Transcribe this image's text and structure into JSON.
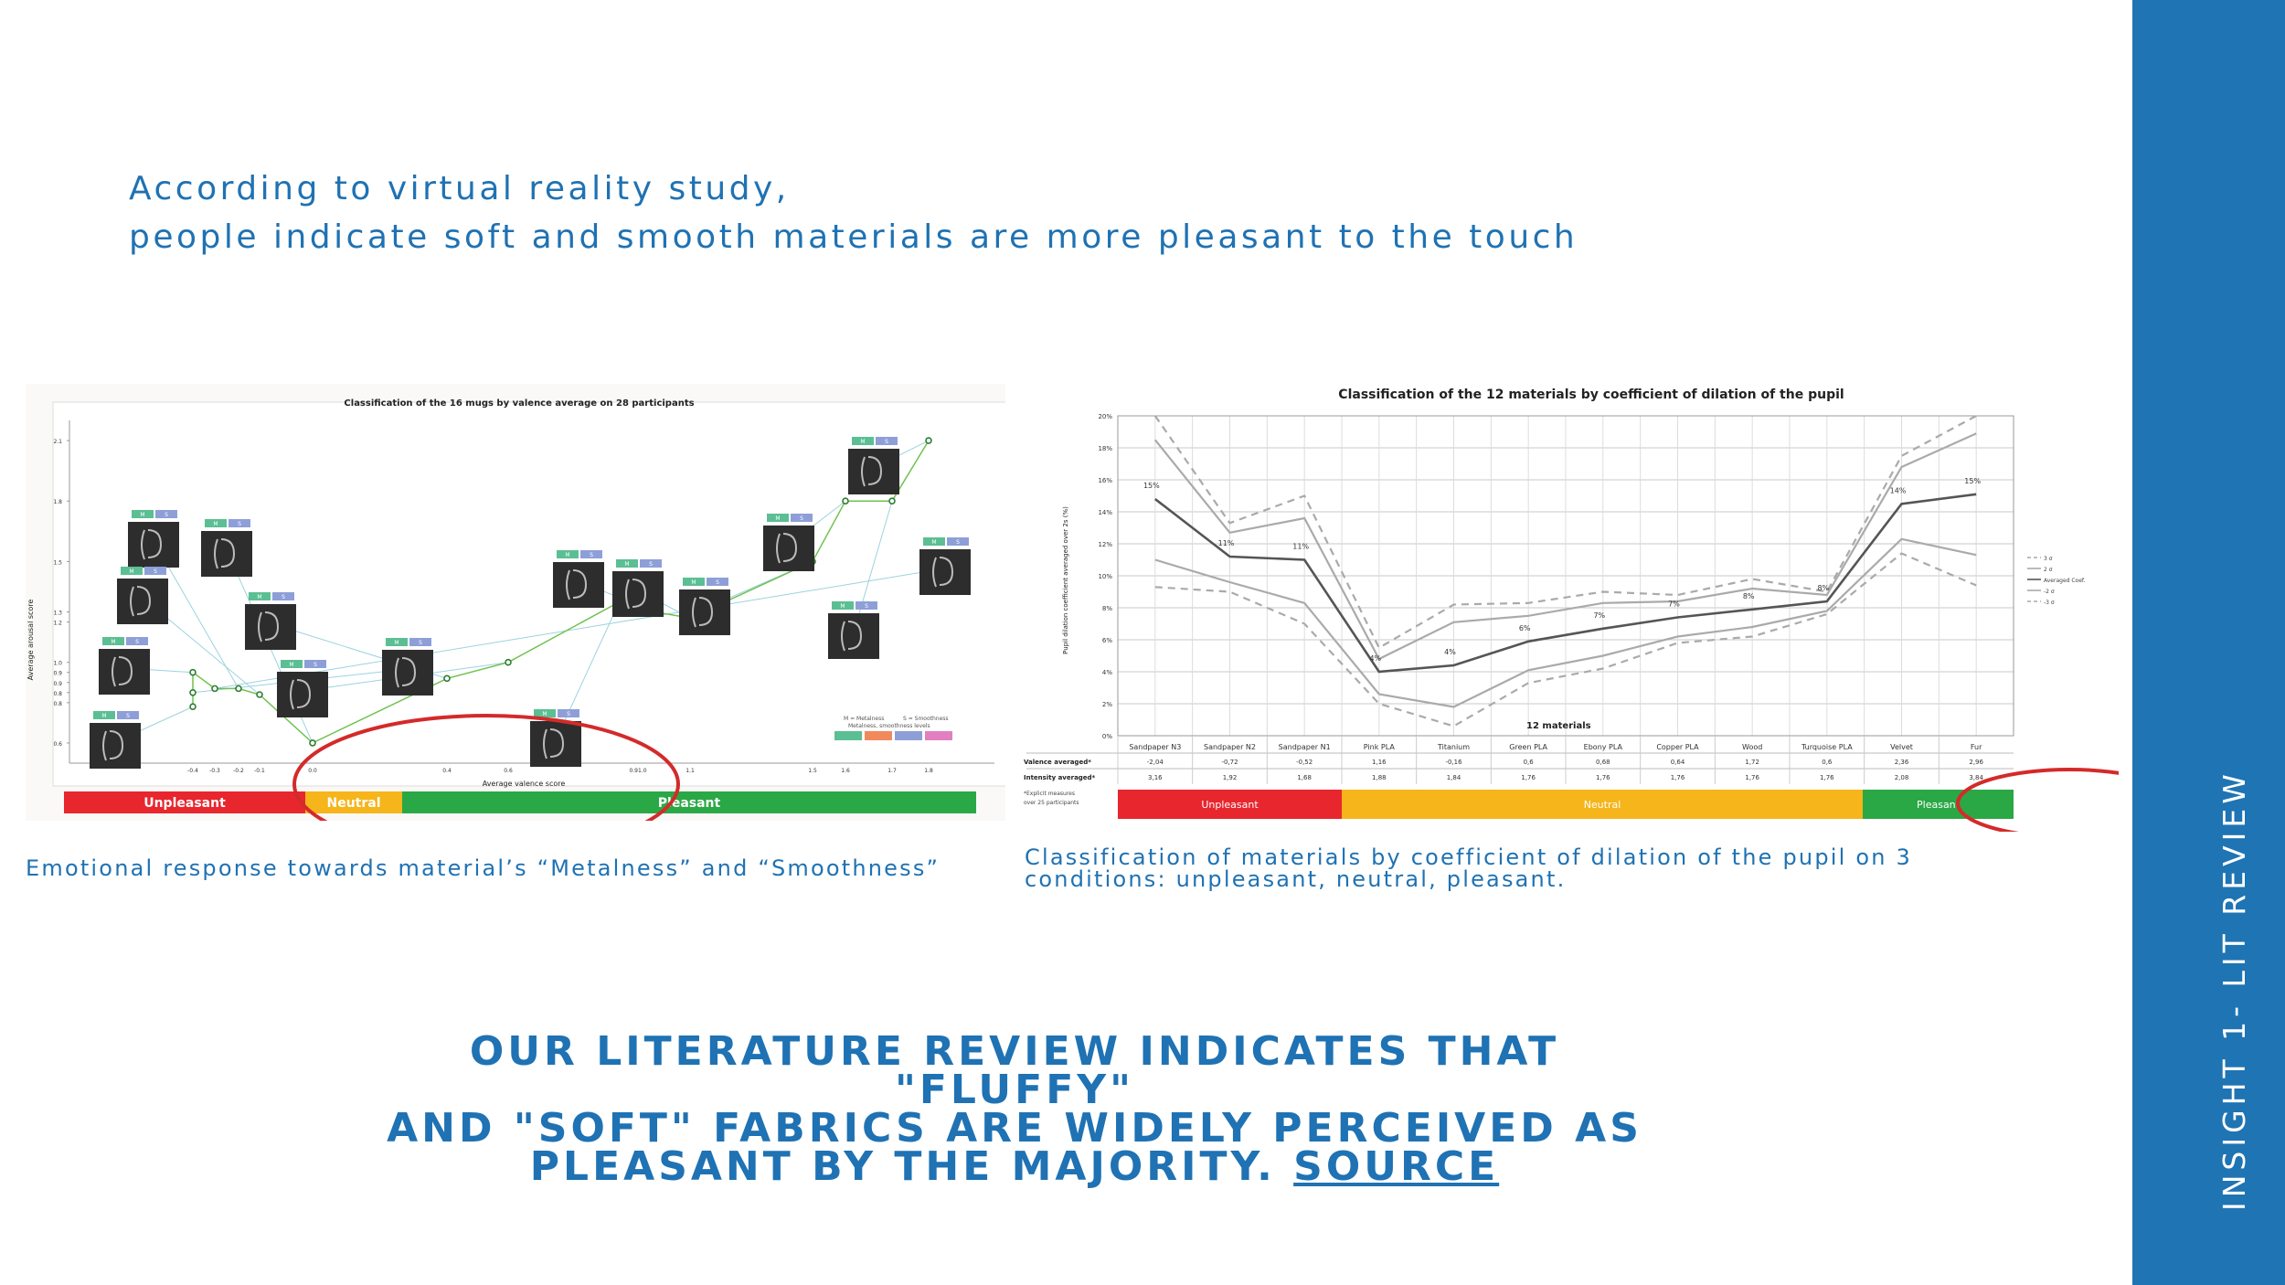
{
  "intro": {
    "line1": "According to virtual reality study,",
    "line2": "people indicate soft and smooth materials are more pleasant to the touch"
  },
  "sidebar": {
    "label": "INSIGHT 1- LIT REVIEW"
  },
  "left_figure": {
    "caption": "Emotional response towards material’s “Metalness” and “Smoothness”",
    "chart_data": {
      "type": "line",
      "title": "Classification of the 16 mugs by valence average on 28 participants",
      "xlabel": "Average valence score",
      "ylabel": "Average arousal score",
      "x_ticks": [
        "-0.4",
        "-0.3",
        "-0.2",
        "-0.1",
        "0.0",
        "0.4",
        "0.6",
        "0.91.0",
        "1.1",
        "1.5",
        "1.6",
        "1.7",
        "1.8"
      ],
      "y_ticks": [
        "0.6",
        "0.8",
        "0.8",
        "0.9",
        "0.9",
        "1.0",
        "1.2",
        "1.3",
        "1.5",
        "1.8",
        "2.1"
      ],
      "x": [
        -0.4,
        -0.4,
        -0.4,
        -0.3,
        -0.2,
        -0.1,
        0.0,
        0.4,
        0.6,
        0.9,
        1.0,
        1.1,
        1.5,
        1.6,
        1.7,
        1.8
      ],
      "y": [
        0.78,
        0.85,
        0.95,
        0.87,
        0.87,
        0.84,
        0.6,
        0.92,
        1.0,
        1.3,
        1.25,
        1.22,
        1.5,
        1.8,
        1.8,
        2.1
      ],
      "legend": [
        "M = Metalness",
        "S = Smoothness",
        "Metalness, smoothness levels"
      ],
      "zones": [
        "Unpleasant",
        "Neutral",
        "Pleasant"
      ],
      "zone_colors": [
        "#e8262e",
        "#f5b51b",
        "#2aa845"
      ],
      "tag_labels": [
        "M",
        "S"
      ]
    }
  },
  "right_figure": {
    "caption": "Classification of materials by coefficient of dilation of the pupil on 3 conditions: unpleasant, neutral, pleasant.",
    "chart_data": {
      "type": "line",
      "title": "Classification of the 12 materials by coefficient of dilation of the pupil",
      "xlabel": "12 materials",
      "ylabel": "Pupil dilation coefficient averaged over 2s (%)",
      "y_ticks": [
        "0%",
        "2%",
        "4%",
        "6%",
        "8%",
        "10%",
        "12%",
        "14%",
        "16%",
        "18%",
        "20%"
      ],
      "ylim": [
        0,
        20
      ],
      "categories": [
        "Sandpaper N3",
        "Sandpaper N2",
        "Sandpaper N1",
        "Pink PLA",
        "Titanium",
        "Green PLA",
        "Ebony PLA",
        "Copper PLA",
        "Wood",
        "Turquoise PLA",
        "Velvet",
        "Fur"
      ],
      "series": [
        {
          "name": "3 σ",
          "values": [
            20,
            13.3,
            15,
            5.5,
            8.2,
            8.3,
            9,
            8.8,
            9.8,
            9,
            17.5,
            20
          ]
        },
        {
          "name": "2 σ",
          "values": [
            18.5,
            12.7,
            13.6,
            4.8,
            7.1,
            7.5,
            8.3,
            8.4,
            9.2,
            8.8,
            16.8,
            18.9
          ]
        },
        {
          "name": "Averaged Coef.",
          "values": [
            14.8,
            11.2,
            11,
            4,
            4.4,
            5.9,
            6.7,
            7.4,
            7.9,
            8.4,
            14.5,
            15.1
          ]
        },
        {
          "name": "-2 σ",
          "values": [
            11,
            9.6,
            8.3,
            2.6,
            1.8,
            4.1,
            5,
            6.2,
            6.8,
            7.8,
            12.3,
            11.3
          ]
        },
        {
          "name": "-3 σ",
          "values": [
            9.3,
            9,
            7,
            2,
            0.6,
            3.3,
            4.2,
            5.8,
            6.2,
            7.6,
            11.4,
            9.4
          ]
        }
      ],
      "point_labels": [
        "15%",
        "11%",
        "11%",
        "4%",
        "4%",
        "6%",
        "7%",
        "7%",
        "8%",
        "8%",
        "14%",
        "15%"
      ],
      "table": {
        "row_labels": [
          "Valence averaged*",
          "Intensity averaged*"
        ],
        "valence": [
          "-2,04",
          "-0,72",
          "-0,52",
          "1,16",
          "-0,16",
          "0,6",
          "0,68",
          "0,64",
          "1,72",
          "0,6",
          "2,36",
          "2,96"
        ],
        "intensity": [
          "3,16",
          "1,92",
          "1,68",
          "1,88",
          "1,84",
          "1,76",
          "1,76",
          "1,76",
          "1,76",
          "1,76",
          "2,08",
          "3,84"
        ],
        "footnote_1": "*Explicit measures",
        "footnote_2": "over 25 participants"
      },
      "zones": [
        "Unpleasant",
        "Neutral",
        "Pleasant"
      ],
      "zone_colors": [
        "#e8262e",
        "#f5b51b",
        "#2aa845"
      ]
    }
  },
  "conclusion": {
    "line1": "OUR LITERATURE REVIEW INDICATES THAT \"FLUFFY\"",
    "line2": "AND \"SOFT\" FABRICS ARE WIDELY PERCEIVED AS",
    "line3": "PLEASANT BY THE MAJORITY.",
    "link": "SOURCE"
  }
}
